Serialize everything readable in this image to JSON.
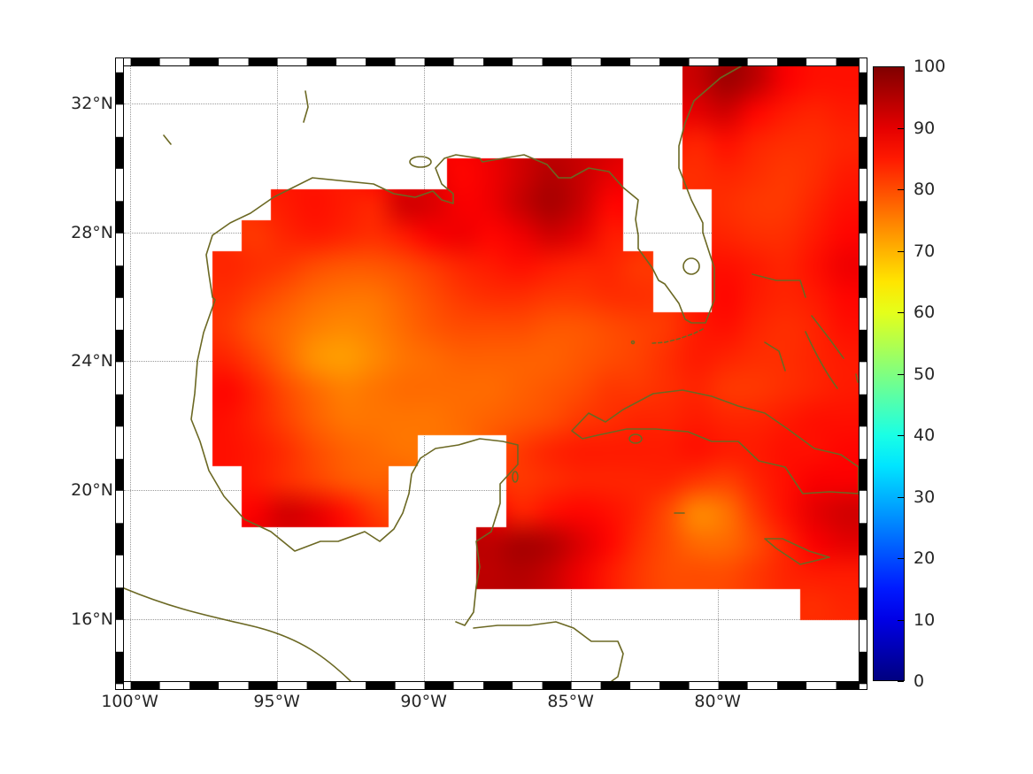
{
  "figure": {
    "background": "#ffffff"
  },
  "colors": {
    "colormap": "jet",
    "coastline": "#6b6823",
    "gridline": "#9a9a9a",
    "frame": "#000000",
    "no_data": "#ffffff",
    "text": "#262626"
  },
  "chart_data": {
    "type": "heatmap",
    "title": "",
    "description": "Geographic heatmap over the Gulf of Mexico, western Caribbean and adjacent Atlantic; values 0-100 on a jet colormap (observed field spans ~72-97, reds/oranges); land and out-of-domain areas are white; dark-olive coastlines; dotted graticule; checkered map frame.",
    "x_axis": {
      "range": [
        -100.2,
        -75.2
      ],
      "ticks": [
        {
          "v": -100,
          "label": "100°W"
        },
        {
          "v": -95,
          "label": "95°W"
        },
        {
          "v": -90,
          "label": "90°W"
        },
        {
          "v": -85,
          "label": "85°W"
        },
        {
          "v": -80,
          "label": "80°W"
        }
      ]
    },
    "y_axis": {
      "range": [
        14.07,
        33.16
      ],
      "ticks": [
        {
          "v": 32,
          "label": "32°N"
        },
        {
          "v": 28,
          "label": "28°N"
        },
        {
          "v": 24,
          "label": "24°N"
        },
        {
          "v": 20,
          "label": "20°N"
        },
        {
          "v": 16,
          "label": "16°N"
        }
      ]
    },
    "colorbar": {
      "range": [
        0,
        100
      ],
      "colormap": "jet",
      "ticks": [
        {
          "v": 100,
          "label": "100"
        },
        {
          "v": 90,
          "label": "90"
        },
        {
          "v": 80,
          "label": "80"
        },
        {
          "v": 70,
          "label": "70"
        },
        {
          "v": 60,
          "label": "60"
        },
        {
          "v": 50,
          "label": "50"
        },
        {
          "v": 40,
          "label": "40"
        },
        {
          "v": 30,
          "label": "30"
        },
        {
          "v": 20,
          "label": "20"
        },
        {
          "v": 10,
          "label": "10"
        },
        {
          "v": 0,
          "label": "0"
        }
      ]
    },
    "grid": {
      "note": "25 x 20 cells spanning the full axes extent; row 0 = north; null = no data / land (white)",
      "lon_range": [
        -100.2,
        -75.2
      ],
      "lat_range": [
        14.07,
        33.16
      ],
      "values": [
        [
          null,
          null,
          null,
          null,
          null,
          null,
          null,
          null,
          null,
          null,
          null,
          null,
          null,
          null,
          null,
          null,
          null,
          null,
          null,
          93,
          97,
          94,
          88,
          86,
          86
        ],
        [
          null,
          null,
          null,
          null,
          null,
          null,
          null,
          null,
          null,
          null,
          null,
          null,
          null,
          null,
          null,
          null,
          null,
          null,
          null,
          90,
          92,
          87,
          85,
          84,
          85
        ],
        [
          null,
          null,
          null,
          null,
          null,
          null,
          null,
          null,
          null,
          null,
          null,
          null,
          null,
          null,
          null,
          null,
          null,
          null,
          null,
          84,
          86,
          84,
          83,
          83,
          84
        ],
        [
          null,
          null,
          null,
          null,
          null,
          null,
          null,
          null,
          null,
          null,
          null,
          87,
          89,
          92,
          95,
          93,
          90,
          null,
          null,
          83,
          84,
          83,
          82,
          83,
          85
        ],
        [
          null,
          null,
          null,
          null,
          null,
          85,
          86,
          85,
          84,
          92,
          91,
          88,
          89,
          93,
          96,
          93,
          87,
          null,
          null,
          null,
          83,
          82,
          82,
          84,
          86
        ],
        [
          null,
          null,
          null,
          null,
          82,
          84,
          85,
          84,
          83,
          85,
          88,
          89,
          87,
          89,
          92,
          90,
          85,
          null,
          null,
          null,
          84,
          83,
          83,
          85,
          87
        ],
        [
          null,
          null,
          null,
          84,
          83,
          82,
          80,
          79,
          79,
          80,
          82,
          84,
          85,
          86,
          85,
          84,
          84,
          82,
          null,
          null,
          86,
          85,
          84,
          86,
          89
        ],
        [
          null,
          null,
          null,
          83,
          81,
          79,
          77,
          76,
          76,
          78,
          80,
          82,
          83,
          83,
          82,
          82,
          83,
          83,
          null,
          null,
          87,
          85,
          84,
          85,
          87
        ],
        [
          null,
          null,
          null,
          82,
          79,
          77,
          75,
          74,
          75,
          77,
          79,
          80,
          80,
          80,
          79,
          79,
          80,
          81,
          82,
          85,
          86,
          84,
          83,
          84,
          86
        ],
        [
          null,
          null,
          null,
          84,
          81,
          77,
          73,
          72,
          74,
          76,
          77,
          78,
          78,
          78,
          78,
          79,
          80,
          81,
          83,
          85,
          84,
          83,
          83,
          84,
          85
        ],
        [
          null,
          null,
          null,
          87,
          84,
          80,
          77,
          75,
          76,
          77,
          77,
          77,
          77,
          78,
          79,
          80,
          82,
          82,
          83,
          84,
          82,
          82,
          83,
          84,
          85
        ],
        [
          null,
          null,
          null,
          86,
          84,
          81,
          78,
          76,
          76,
          76,
          76,
          77,
          78,
          79,
          80,
          82,
          83,
          84,
          84,
          85,
          84,
          84,
          85,
          86,
          86
        ],
        [
          null,
          null,
          null,
          86,
          85,
          83,
          80,
          78,
          77,
          76,
          null,
          null,
          null,
          82,
          84,
          85,
          85,
          85,
          85,
          86,
          85,
          85,
          86,
          86,
          87
        ],
        [
          null,
          null,
          null,
          null,
          85,
          83,
          81,
          79,
          78,
          null,
          null,
          null,
          null,
          82,
          83,
          84,
          84,
          84,
          84,
          82,
          81,
          84,
          86,
          88,
          88
        ],
        [
          null,
          null,
          null,
          null,
          88,
          92,
          90,
          86,
          82,
          null,
          null,
          null,
          null,
          84,
          86,
          87,
          86,
          84,
          80,
          74,
          76,
          82,
          86,
          90,
          92
        ],
        [
          null,
          null,
          null,
          null,
          null,
          null,
          null,
          null,
          null,
          null,
          null,
          null,
          94,
          96,
          95,
          91,
          87,
          83,
          80,
          77,
          77,
          80,
          84,
          88,
          90
        ],
        [
          null,
          null,
          null,
          null,
          null,
          null,
          null,
          null,
          null,
          null,
          null,
          null,
          94,
          95,
          93,
          89,
          85,
          82,
          80,
          80,
          80,
          82,
          84,
          85,
          85
        ],
        [
          null,
          null,
          null,
          null,
          null,
          null,
          null,
          null,
          null,
          null,
          null,
          null,
          null,
          null,
          null,
          null,
          null,
          null,
          null,
          null,
          null,
          null,
          null,
          83,
          84
        ],
        [
          null,
          null,
          null,
          null,
          null,
          null,
          null,
          null,
          null,
          null,
          null,
          null,
          null,
          null,
          null,
          null,
          null,
          null,
          null,
          null,
          null,
          null,
          null,
          null,
          null
        ],
        [
          null,
          null,
          null,
          null,
          null,
          null,
          null,
          null,
          null,
          null,
          null,
          null,
          null,
          null,
          null,
          null,
          null,
          null,
          null,
          null,
          null,
          null,
          null,
          null,
          null
        ]
      ]
    }
  }
}
